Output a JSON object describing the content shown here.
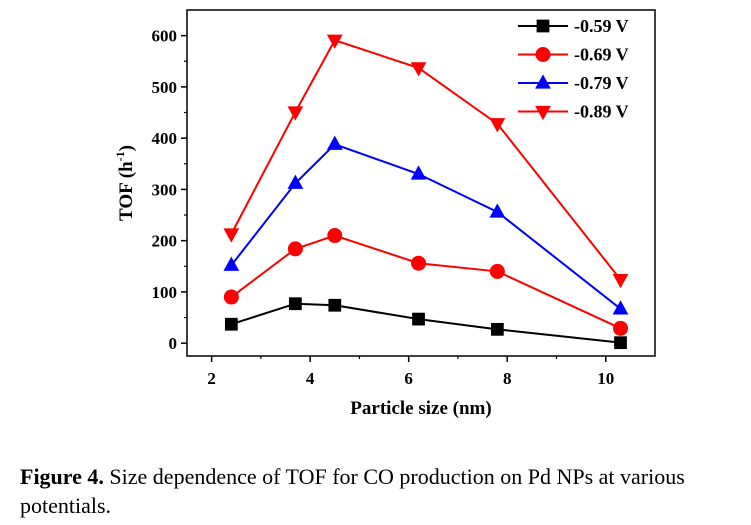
{
  "chart_data": {
    "type": "line",
    "xlabel": "Particle size (nm)",
    "ylabel": "TOF (h",
    "ylabel_sup": "-1",
    "ylabel_end": ")",
    "xlim": [
      1.5,
      11.0
    ],
    "ylim": [
      -25,
      650
    ],
    "xticks": [
      2,
      4,
      6,
      8,
      10
    ],
    "yticks": [
      0,
      100,
      200,
      300,
      400,
      500,
      600
    ],
    "grid": false,
    "legend_position": "top-right",
    "x": [
      2.4,
      3.7,
      4.5,
      6.2,
      7.8,
      10.3
    ],
    "series": [
      {
        "name": "-0.59 V",
        "color": "#000000",
        "marker": "square",
        "values": [
          37,
          77,
          74,
          47,
          27,
          1
        ]
      },
      {
        "name": "-0.69 V",
        "color": "#ff0000",
        "marker": "circle",
        "values": [
          90,
          184,
          210,
          156,
          140,
          29
        ]
      },
      {
        "name": "-0.79 V",
        "color": "#0000ff",
        "marker": "triangle-up",
        "values": [
          152,
          312,
          388,
          330,
          256,
          67
        ]
      },
      {
        "name": "-0.89 V",
        "color": "#ff0000",
        "marker": "triangle-down",
        "values": [
          213,
          451,
          591,
          537,
          428,
          124
        ]
      }
    ]
  },
  "caption": {
    "label": "Figure 4.",
    "text": " Size dependence of TOF for CO production on Pd NPs at various potentials."
  }
}
